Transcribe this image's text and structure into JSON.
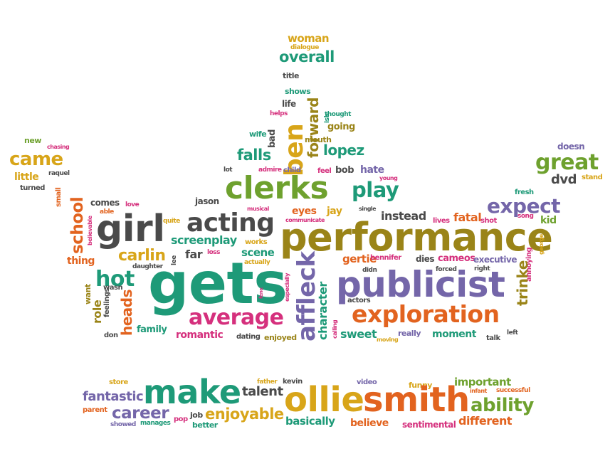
{
  "palette": {
    "orange": "#e2631f",
    "gold": "#d8a519",
    "green": "#1e9a78",
    "dark_gray": "#4a4a4a",
    "olive": "#9a8418",
    "purple": "#7466a9",
    "pink": "#d5307d",
    "lime": "#6ea12e"
  },
  "words": [
    {
      "text": "woman",
      "color": "#d8a519"
    },
    {
      "text": "dialogue",
      "color": "#d8a519"
    },
    {
      "text": "overall",
      "color": "#1e9a78"
    },
    {
      "text": "title",
      "color": "#4a4a4a"
    },
    {
      "text": "shows",
      "color": "#1e9a78"
    },
    {
      "text": "life",
      "color": "#4a4a4a"
    },
    {
      "text": "helps",
      "color": "#d5307d"
    },
    {
      "text": "bad",
      "color": "#4a4a4a"
    },
    {
      "text": "wife",
      "color": "#1e9a78"
    },
    {
      "text": "ben",
      "color": "#d8a519"
    },
    {
      "text": "forward",
      "color": "#9a8418"
    },
    {
      "text": "ish",
      "color": "#1e9a78"
    },
    {
      "text": "thought",
      "color": "#1e9a78"
    },
    {
      "text": "going",
      "color": "#9a8418"
    },
    {
      "text": "mouth",
      "color": "#9a8418"
    },
    {
      "text": "lopez",
      "color": "#1e9a78"
    },
    {
      "text": "falls",
      "color": "#1e9a78"
    },
    {
      "text": "lot",
      "color": "#4a4a4a"
    },
    {
      "text": "admire",
      "color": "#d5307d"
    },
    {
      "text": "child",
      "color": "#7466a9"
    },
    {
      "text": "feel",
      "color": "#d5307d"
    },
    {
      "text": "bob",
      "color": "#4a4a4a"
    },
    {
      "text": "hate",
      "color": "#7466a9"
    },
    {
      "text": "young",
      "color": "#d5307d"
    },
    {
      "text": "new",
      "color": "#6ea12e"
    },
    {
      "text": "chasing",
      "color": "#d5307d"
    },
    {
      "text": "came",
      "color": "#d8a519"
    },
    {
      "text": "little",
      "color": "#d8a519"
    },
    {
      "text": "raquel",
      "color": "#4a4a4a"
    },
    {
      "text": "turned",
      "color": "#4a4a4a"
    },
    {
      "text": "small",
      "color": "#e2631f"
    },
    {
      "text": "school",
      "color": "#e2631f"
    },
    {
      "text": "believable",
      "color": "#d5307d"
    },
    {
      "text": "clerks",
      "color": "#6ea12e"
    },
    {
      "text": "play",
      "color": "#1e9a78"
    },
    {
      "text": "comes",
      "color": "#4a4a4a"
    },
    {
      "text": "love",
      "color": "#d5307d"
    },
    {
      "text": "able",
      "color": "#e2631f"
    },
    {
      "text": "jason",
      "color": "#4a4a4a"
    },
    {
      "text": "girl",
      "color": "#4a4a4a"
    },
    {
      "text": "acting",
      "color": "#4a4a4a"
    },
    {
      "text": "musical",
      "color": "#d5307d"
    },
    {
      "text": "communicate",
      "color": "#d5307d"
    },
    {
      "text": "single",
      "color": "#4a4a4a"
    },
    {
      "text": "eyes",
      "color": "#e2631f"
    },
    {
      "text": "jay",
      "color": "#d8a519"
    },
    {
      "text": "instead",
      "color": "#4a4a4a"
    },
    {
      "text": "doesn",
      "color": "#7466a9"
    },
    {
      "text": "great",
      "color": "#6ea12e"
    },
    {
      "text": "dvd",
      "color": "#4a4a4a"
    },
    {
      "text": "stand",
      "color": "#d8a519"
    },
    {
      "text": "fresh",
      "color": "#1e9a78"
    },
    {
      "text": "expect",
      "color": "#7466a9"
    },
    {
      "text": "song",
      "color": "#d5307d"
    },
    {
      "text": "kid",
      "color": "#6ea12e"
    },
    {
      "text": "quite",
      "color": "#d8a519"
    },
    {
      "text": "screenplay",
      "color": "#1e9a78"
    },
    {
      "text": "works",
      "color": "#d8a519"
    },
    {
      "text": "performance",
      "color": "#9a8418"
    },
    {
      "text": "lives",
      "color": "#d5307d"
    },
    {
      "text": "fatal",
      "color": "#e2631f"
    },
    {
      "text": "shot",
      "color": "#d5307d"
    },
    {
      "text": "annoying",
      "color": "#d5307d"
    },
    {
      "text": "george",
      "color": "#d8a519"
    },
    {
      "text": "thing",
      "color": "#e2631f"
    },
    {
      "text": "carlin",
      "color": "#d8a519"
    },
    {
      "text": "far",
      "color": "#4a4a4a"
    },
    {
      "text": "lee",
      "color": "#4a4a4a"
    },
    {
      "text": "loss",
      "color": "#d5307d"
    },
    {
      "text": "scene",
      "color": "#1e9a78"
    },
    {
      "text": "actually",
      "color": "#d8a519"
    },
    {
      "text": "gertie",
      "color": "#e2631f"
    },
    {
      "text": "bennifer",
      "color": "#d5307d"
    },
    {
      "text": "dies",
      "color": "#4a4a4a"
    },
    {
      "text": "cameos",
      "color": "#d5307d"
    },
    {
      "text": "executive",
      "color": "#7466a9"
    },
    {
      "text": "daughter",
      "color": "#4a4a4a"
    },
    {
      "text": "hot",
      "color": "#1e9a78"
    },
    {
      "text": "gets",
      "color": "#1e9a78"
    },
    {
      "text": "especially",
      "color": "#d5307d"
    },
    {
      "text": "affleck",
      "color": "#7466a9"
    },
    {
      "text": "didn",
      "color": "#4a4a4a"
    },
    {
      "text": "publicist",
      "color": "#7466a9"
    },
    {
      "text": "forced",
      "color": "#4a4a4a"
    },
    {
      "text": "right",
      "color": "#4a4a4a"
    },
    {
      "text": "trinke",
      "color": "#9a8418"
    },
    {
      "text": "wasn",
      "color": "#4a4a4a"
    },
    {
      "text": "want",
      "color": "#9a8418"
    },
    {
      "text": "feelings",
      "color": "#4a4a4a"
    },
    {
      "text": "role",
      "color": "#9a8418"
    },
    {
      "text": "heads",
      "color": "#e2631f"
    },
    {
      "text": "fene",
      "color": "#d5307d"
    },
    {
      "text": "character",
      "color": "#1e9a78"
    },
    {
      "text": "actors",
      "color": "#4a4a4a"
    },
    {
      "text": "calling",
      "color": "#d5307d"
    },
    {
      "text": "average",
      "color": "#d5307d"
    },
    {
      "text": "exploration",
      "color": "#e2631f"
    },
    {
      "text": "family",
      "color": "#1e9a78"
    },
    {
      "text": "romantic",
      "color": "#d5307d"
    },
    {
      "text": "dating",
      "color": "#4a4a4a"
    },
    {
      "text": "enjoyed",
      "color": "#9a8418"
    },
    {
      "text": "sweet",
      "color": "#1e9a78"
    },
    {
      "text": "moving",
      "color": "#d8a519"
    },
    {
      "text": "really",
      "color": "#7466a9"
    },
    {
      "text": "moment",
      "color": "#1e9a78"
    },
    {
      "text": "talk",
      "color": "#4a4a4a"
    },
    {
      "text": "left",
      "color": "#4a4a4a"
    },
    {
      "text": "don",
      "color": "#4a4a4a"
    },
    {
      "text": "store",
      "color": "#d8a519"
    },
    {
      "text": "father",
      "color": "#d8a519"
    },
    {
      "text": "kevin",
      "color": "#4a4a4a"
    },
    {
      "text": "video",
      "color": "#7466a9"
    },
    {
      "text": "funny",
      "color": "#d8a519"
    },
    {
      "text": "important",
      "color": "#6ea12e"
    },
    {
      "text": "infant",
      "color": "#e2631f"
    },
    {
      "text": "successful",
      "color": "#e2631f"
    },
    {
      "text": "fantastic",
      "color": "#7466a9"
    },
    {
      "text": "make",
      "color": "#1e9a78"
    },
    {
      "text": "talent",
      "color": "#4a4a4a"
    },
    {
      "text": "ollie",
      "color": "#d8a519"
    },
    {
      "text": "smith",
      "color": "#e2631f"
    },
    {
      "text": "ability",
      "color": "#6ea12e"
    },
    {
      "text": "parent",
      "color": "#e2631f"
    },
    {
      "text": "career",
      "color": "#7466a9"
    },
    {
      "text": "pop",
      "color": "#d5307d"
    },
    {
      "text": "job",
      "color": "#4a4a4a"
    },
    {
      "text": "enjoyable",
      "color": "#d8a519"
    },
    {
      "text": "showed",
      "color": "#7466a9"
    },
    {
      "text": "manages",
      "color": "#1e9a78"
    },
    {
      "text": "better",
      "color": "#1e9a78"
    },
    {
      "text": "basically",
      "color": "#1e9a78"
    },
    {
      "text": "believe",
      "color": "#e2631f"
    },
    {
      "text": "sentimental",
      "color": "#d5307d"
    },
    {
      "text": "different",
      "color": "#e2631f"
    }
  ]
}
